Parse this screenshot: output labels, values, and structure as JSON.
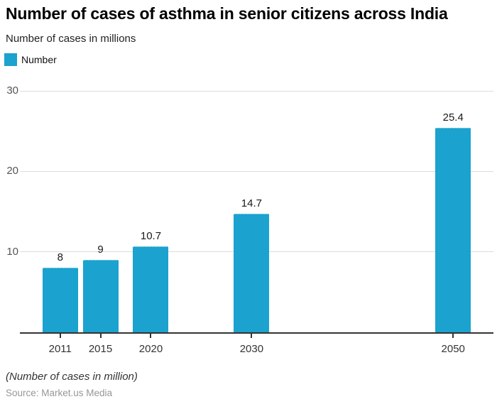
{
  "header": {
    "title": "Number of cases of asthma in senior citizens across India",
    "subtitle": "Number of cases in millions"
  },
  "legend": {
    "label": "Number",
    "swatch_icon": "legend-color-square",
    "swatch_color": "#1BA2CE"
  },
  "footer": {
    "note": "(Number of cases in million)",
    "source": "Source: Market.us Media"
  },
  "colors": {
    "bar": "#1BA2CE",
    "gridline": "#dcdcdc",
    "axis_line": "#333333",
    "y_tick_label": "#555555",
    "x_tick_label": "#333333",
    "value_label": "#1a1a1a",
    "title": "#000000",
    "source_text": "#979797"
  },
  "chart_data": {
    "type": "bar",
    "title": "Number of cases of asthma in senior citizens across India",
    "subtitle": "Number of cases in millions",
    "series_name": "Number",
    "categories": [
      "2011",
      "2015",
      "2020",
      "2030",
      "2050"
    ],
    "x_years": [
      2011,
      2015,
      2020,
      2030,
      2050
    ],
    "values": [
      8,
      9,
      10.7,
      14.7,
      25.4
    ],
    "value_labels": [
      "8",
      "9",
      "10.7",
      "14.7",
      "25.4"
    ],
    "ylabel": "Number of cases in millions",
    "xlabel": "",
    "ylim": [
      0,
      30
    ],
    "yticks": [
      10,
      20,
      30
    ],
    "xlim": [
      2007,
      2054
    ],
    "x_axis_type": "linear-years",
    "grid": "horizontal",
    "legend_position": "top-left",
    "bar_color": "#1BA2CE",
    "note": "(Number of cases in million)",
    "source": "Source: Market.us Media"
  }
}
